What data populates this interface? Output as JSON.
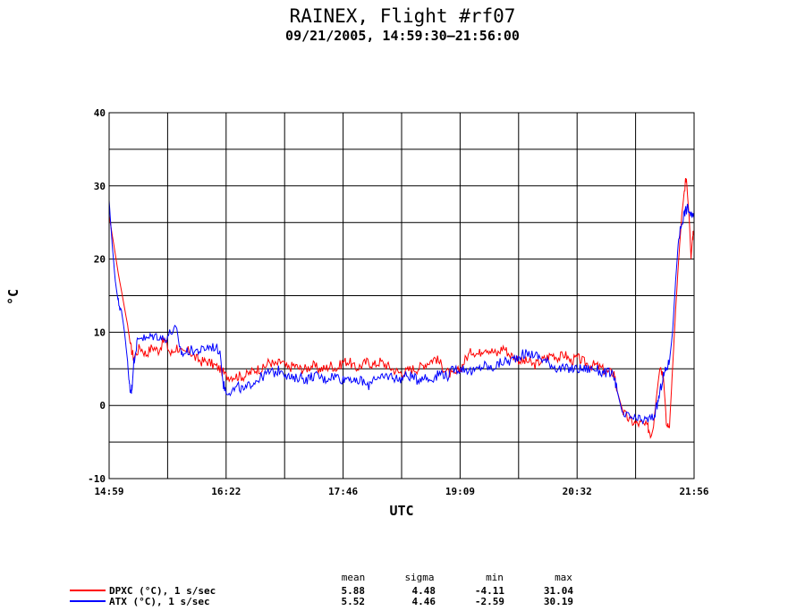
{
  "chart_data": {
    "type": "line",
    "title": "RAINEX, Flight #rf07",
    "subtitle": "09/21/2005, 14:59:30–21:56:00",
    "xlabel": "UTC",
    "ylabel": "°C",
    "ylim": [
      -10,
      40
    ],
    "yticks": [
      "40",
      "30",
      "20",
      "10",
      "0",
      "-10"
    ],
    "xticks": [
      "14:59",
      "16:22",
      "17:46",
      "19:09",
      "20:32",
      "21:56"
    ],
    "grid": true,
    "legend_position": "bottom-left",
    "stat_headers": {
      "mean": "mean",
      "sigma": "sigma",
      "min": "min",
      "max": "max"
    },
    "x_unit": "minutes since 14:59:30",
    "series": [
      {
        "name": "DPXC (°C), 1 s/sec",
        "color": "#ff0000",
        "mean": "5.88",
        "sigma": "4.48",
        "min": "-4.11",
        "max": "31.04",
        "points": [
          [
            0,
            26
          ],
          [
            6,
            18
          ],
          [
            12,
            11
          ],
          [
            14,
            8
          ],
          [
            16,
            6.5
          ],
          [
            20,
            8
          ],
          [
            24,
            7
          ],
          [
            28,
            8
          ],
          [
            32,
            7.5
          ],
          [
            36,
            9
          ],
          [
            40,
            7
          ],
          [
            44,
            8
          ],
          [
            48,
            7
          ],
          [
            52,
            7.5
          ],
          [
            56,
            6.5
          ],
          [
            60,
            6
          ],
          [
            64,
            6
          ],
          [
            68,
            5.5
          ],
          [
            72,
            5
          ],
          [
            76,
            4
          ],
          [
            80,
            4
          ],
          [
            84,
            4
          ],
          [
            88,
            4
          ],
          [
            92,
            4.5
          ],
          [
            96,
            5
          ],
          [
            100,
            5
          ],
          [
            104,
            6
          ],
          [
            108,
            5.5
          ],
          [
            112,
            6
          ],
          [
            116,
            5
          ],
          [
            120,
            5.5
          ],
          [
            124,
            5
          ],
          [
            128,
            5
          ],
          [
            132,
            5.5
          ],
          [
            136,
            5
          ],
          [
            140,
            5
          ],
          [
            144,
            5.5
          ],
          [
            148,
            5
          ],
          [
            152,
            6
          ],
          [
            156,
            6
          ],
          [
            160,
            5
          ],
          [
            164,
            5.5
          ],
          [
            168,
            6
          ],
          [
            172,
            5.5
          ],
          [
            176,
            6
          ],
          [
            180,
            5.5
          ],
          [
            184,
            5
          ],
          [
            188,
            4.5
          ],
          [
            192,
            4.5
          ],
          [
            196,
            5
          ],
          [
            200,
            5
          ],
          [
            204,
            5.5
          ],
          [
            208,
            6
          ],
          [
            212,
            6.5
          ],
          [
            216,
            5.5
          ],
          [
            220,
            4.5
          ],
          [
            224,
            4
          ],
          [
            228,
            5
          ],
          [
            232,
            6.5
          ],
          [
            236,
            7.5
          ],
          [
            240,
            7
          ],
          [
            244,
            8
          ],
          [
            248,
            7.5
          ],
          [
            252,
            7
          ],
          [
            256,
            8
          ],
          [
            260,
            7
          ],
          [
            264,
            6.5
          ],
          [
            268,
            6
          ],
          [
            272,
            6
          ],
          [
            276,
            5.5
          ],
          [
            280,
            6
          ],
          [
            284,
            6.5
          ],
          [
            288,
            7
          ],
          [
            292,
            6.5
          ],
          [
            296,
            7
          ],
          [
            300,
            6
          ],
          [
            304,
            6.5
          ],
          [
            308,
            6
          ],
          [
            312,
            5.5
          ],
          [
            316,
            5.5
          ],
          [
            320,
            5
          ],
          [
            324,
            4.5
          ],
          [
            328,
            4.5
          ],
          [
            330,
            2
          ],
          [
            334,
            -1
          ],
          [
            338,
            -2
          ],
          [
            342,
            -2.5
          ],
          [
            346,
            -2.5
          ],
          [
            350,
            -3
          ],
          [
            352,
            -4
          ],
          [
            354,
            -2
          ],
          [
            356,
            2
          ],
          [
            358,
            5.5
          ],
          [
            360,
            4
          ],
          [
            362,
            -2
          ],
          [
            364,
            -3
          ],
          [
            366,
            5
          ],
          [
            368,
            13
          ],
          [
            370,
            20
          ],
          [
            372,
            26
          ],
          [
            374,
            30
          ],
          [
            375,
            31
          ],
          [
            377,
            25
          ],
          [
            378,
            20
          ],
          [
            379,
            23
          ],
          [
            380,
            24
          ]
        ]
      },
      {
        "name": "ATX (°C), 1 s/sec",
        "color": "#0000ff",
        "mean": "5.52",
        "sigma": "4.46",
        "min": "-2.59",
        "max": "30.19",
        "points": [
          [
            0,
            28
          ],
          [
            2,
            22
          ],
          [
            4,
            17
          ],
          [
            6,
            14
          ],
          [
            8,
            13
          ],
          [
            10,
            10
          ],
          [
            12,
            6
          ],
          [
            13,
            3
          ],
          [
            14,
            2
          ],
          [
            15,
            2.5
          ],
          [
            16,
            6
          ],
          [
            18,
            8.5
          ],
          [
            20,
            9.5
          ],
          [
            24,
            9
          ],
          [
            28,
            9.5
          ],
          [
            32,
            9.5
          ],
          [
            36,
            9
          ],
          [
            40,
            10
          ],
          [
            44,
            10.5
          ],
          [
            46,
            7.5
          ],
          [
            48,
            7
          ],
          [
            52,
            7.5
          ],
          [
            56,
            7.5
          ],
          [
            60,
            7.5
          ],
          [
            64,
            8
          ],
          [
            68,
            8
          ],
          [
            72,
            7.5
          ],
          [
            74,
            3
          ],
          [
            76,
            2
          ],
          [
            80,
            2
          ],
          [
            84,
            2.5
          ],
          [
            88,
            2
          ],
          [
            92,
            3
          ],
          [
            96,
            3.5
          ],
          [
            100,
            4
          ],
          [
            104,
            4.5
          ],
          [
            108,
            4.5
          ],
          [
            112,
            5
          ],
          [
            116,
            4
          ],
          [
            120,
            3.5
          ],
          [
            124,
            4
          ],
          [
            128,
            3.5
          ],
          [
            132,
            4
          ],
          [
            136,
            4
          ],
          [
            140,
            3.5
          ],
          [
            144,
            4
          ],
          [
            148,
            4
          ],
          [
            152,
            3.5
          ],
          [
            156,
            4
          ],
          [
            160,
            3
          ],
          [
            164,
            3.5
          ],
          [
            168,
            2.5
          ],
          [
            172,
            4
          ],
          [
            176,
            3.5
          ],
          [
            180,
            4
          ],
          [
            184,
            4
          ],
          [
            188,
            3.5
          ],
          [
            192,
            4
          ],
          [
            196,
            4
          ],
          [
            200,
            3.5
          ],
          [
            204,
            4
          ],
          [
            208,
            3.5
          ],
          [
            212,
            4
          ],
          [
            216,
            4.5
          ],
          [
            220,
            4
          ],
          [
            224,
            5
          ],
          [
            228,
            5
          ],
          [
            232,
            5
          ],
          [
            236,
            4.5
          ],
          [
            240,
            5
          ],
          [
            244,
            5.5
          ],
          [
            248,
            5
          ],
          [
            252,
            5.5
          ],
          [
            256,
            6
          ],
          [
            260,
            6
          ],
          [
            264,
            6.5
          ],
          [
            268,
            7
          ],
          [
            272,
            7
          ],
          [
            276,
            7
          ],
          [
            280,
            6.5
          ],
          [
            284,
            6
          ],
          [
            288,
            5.5
          ],
          [
            292,
            5
          ],
          [
            296,
            5
          ],
          [
            300,
            5
          ],
          [
            304,
            5
          ],
          [
            308,
            5
          ],
          [
            312,
            5
          ],
          [
            316,
            5
          ],
          [
            320,
            4.5
          ],
          [
            324,
            4.5
          ],
          [
            328,
            4
          ],
          [
            330,
            2
          ],
          [
            334,
            -1.5
          ],
          [
            338,
            -1.5
          ],
          [
            342,
            -2
          ],
          [
            346,
            -2
          ],
          [
            350,
            -2
          ],
          [
            354,
            -1.5
          ],
          [
            356,
            0
          ],
          [
            358,
            2
          ],
          [
            360,
            4
          ],
          [
            362,
            5
          ],
          [
            364,
            6
          ],
          [
            366,
            10
          ],
          [
            368,
            17
          ],
          [
            370,
            23
          ],
          [
            372,
            25
          ],
          [
            374,
            26.5
          ],
          [
            376,
            27
          ],
          [
            378,
            26
          ],
          [
            380,
            25.5
          ]
        ]
      }
    ]
  }
}
